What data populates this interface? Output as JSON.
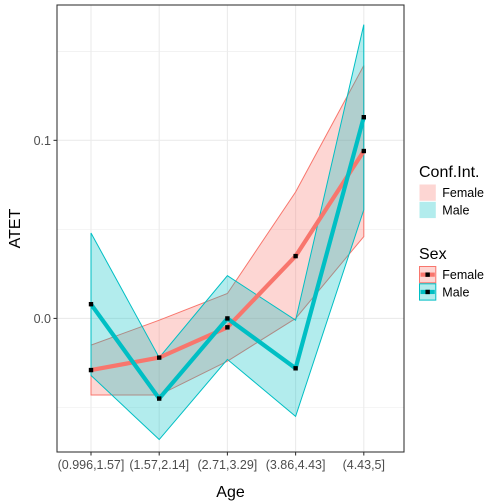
{
  "chart_data": {
    "type": "line",
    "xlabel": "Age",
    "ylabel": "ATET",
    "categories": [
      "(0.996,1.57]",
      "(1.57,2.14]",
      "(2.71,3.29]",
      "(3.86,4.43]",
      "(4.43,5]"
    ],
    "y_ticks": [
      "0.0",
      "0.1"
    ],
    "y_tick_values": [
      0.0,
      0.1
    ],
    "ylim": [
      -0.075,
      0.176
    ],
    "grid": true,
    "legend_position": "right",
    "series": [
      {
        "name": "Female",
        "color": "#F8766D",
        "band_fill": "#F8766D",
        "values": [
          -0.029,
          -0.022,
          -0.005,
          0.035,
          0.094
        ],
        "ci_lower": [
          -0.043,
          -0.043,
          -0.024,
          0.0,
          0.046
        ],
        "ci_upper": [
          -0.015,
          -0.001,
          0.014,
          0.071,
          0.142
        ]
      },
      {
        "name": "Male",
        "color": "#00BFC4",
        "band_fill": "#00BFC4",
        "values": [
          0.008,
          -0.045,
          0.0,
          -0.028,
          0.113
        ],
        "ci_lower": [
          -0.032,
          -0.068,
          -0.023,
          -0.055,
          0.061
        ],
        "ci_upper": [
          0.048,
          -0.022,
          0.024,
          -0.001,
          0.165
        ]
      }
    ],
    "legends": [
      {
        "title": "Conf.Int.",
        "entries": [
          "Female",
          "Male"
        ]
      },
      {
        "title": "Sex",
        "entries": [
          "Female",
          "Male"
        ]
      }
    ]
  }
}
